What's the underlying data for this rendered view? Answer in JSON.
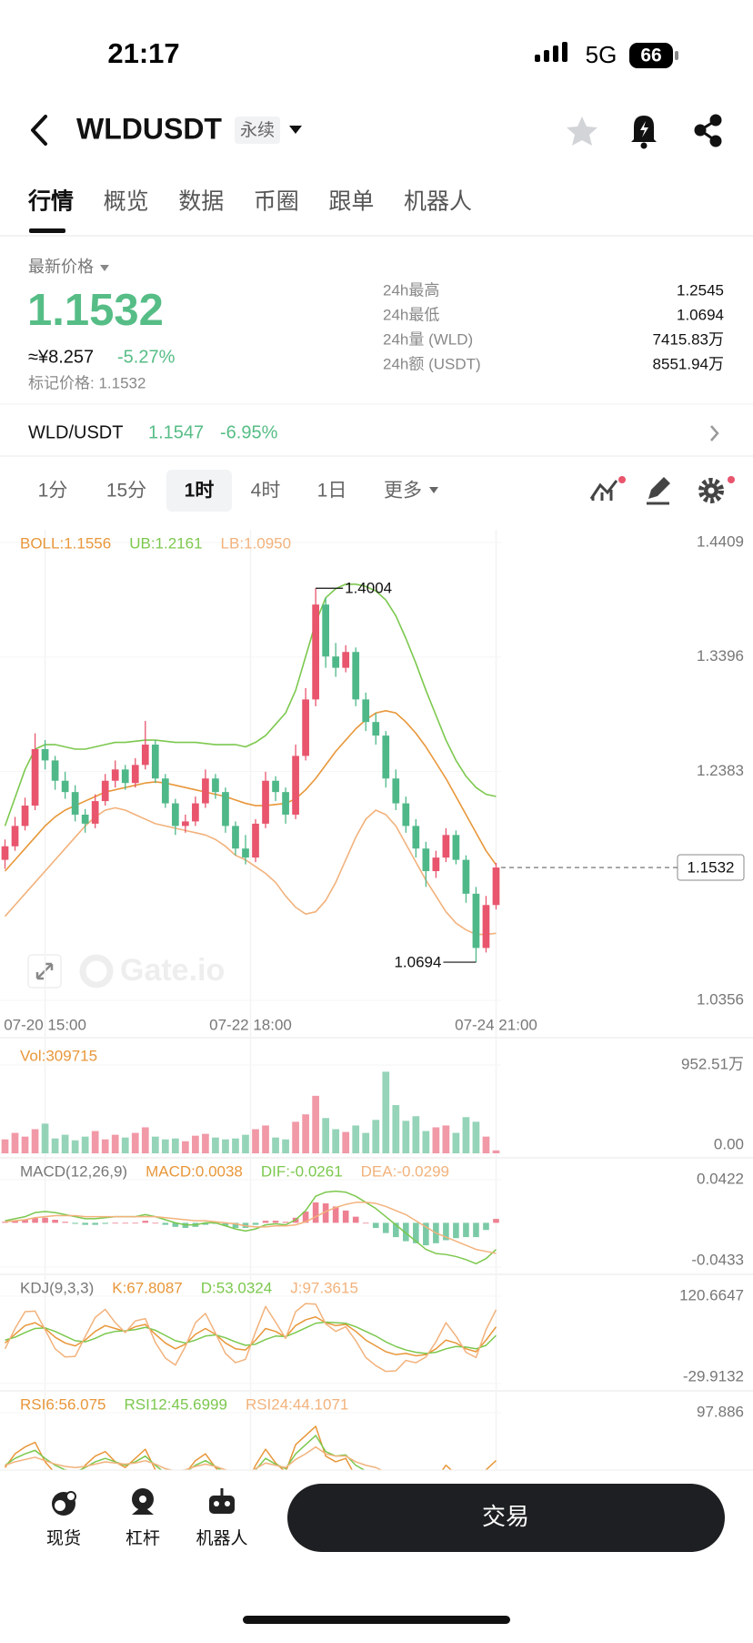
{
  "status_bar": {
    "time": "21:17",
    "network": "5G",
    "battery": "66"
  },
  "header": {
    "symbol": "WLDUSDT",
    "tag": "永续"
  },
  "tabs": [
    "行情",
    "概览",
    "数据",
    "币圈",
    "跟单",
    "机器人"
  ],
  "price": {
    "label": "最新价格",
    "last": "1.1532",
    "cny": "≈¥8.257",
    "change": "-5.27%",
    "mark": "标记价格: 1.1532",
    "stats": [
      [
        "24h最高",
        "1.2545"
      ],
      [
        "24h最低",
        "1.0694"
      ],
      [
        "24h量 (WLD)",
        "7415.83万"
      ],
      [
        "24h额 (USDT)",
        "8551.94万"
      ]
    ]
  },
  "spot": {
    "pair": "WLD/USDT",
    "price": "1.1547",
    "change": "-6.95%"
  },
  "intervals": [
    "1分",
    "15分",
    "1时",
    "4时",
    "1日",
    "更多"
  ],
  "chart": {
    "type": "candlestick",
    "up_color": "#e8556d",
    "down_color": "#4fb889",
    "watermark": "Gate.io",
    "xlim": [
      -0.5,
      49.5
    ],
    "xticks": [
      {
        "value": 4,
        "label": "07-20 15:00"
      },
      {
        "value": 24.5,
        "label": "07-22 18:00"
      },
      {
        "value": 49,
        "label": "07-24 21:00"
      }
    ],
    "ylim": [
      1.0356,
      1.4409
    ],
    "yticks": [
      1.4409,
      1.3396,
      1.2383,
      1.0356
    ],
    "candles": [
      [
        1.16,
        1.178,
        1.152,
        1.172
      ],
      [
        1.172,
        1.198,
        1.168,
        1.19
      ],
      [
        1.19,
        1.215,
        1.186,
        1.208
      ],
      [
        1.208,
        1.272,
        1.204,
        1.258
      ],
      [
        1.258,
        1.266,
        1.24,
        1.248
      ],
      [
        1.248,
        1.252,
        1.222,
        1.23
      ],
      [
        1.23,
        1.238,
        1.214,
        1.22
      ],
      [
        1.22,
        1.226,
        1.194,
        1.2
      ],
      [
        1.2,
        1.205,
        1.184,
        1.192
      ],
      [
        1.192,
        1.218,
        1.188,
        1.212
      ],
      [
        1.212,
        1.236,
        1.208,
        1.23
      ],
      [
        1.23,
        1.248,
        1.224,
        1.24
      ],
      [
        1.24,
        1.244,
        1.222,
        1.228
      ],
      [
        1.228,
        1.25,
        1.224,
        1.244
      ],
      [
        1.244,
        1.283,
        1.24,
        1.262
      ],
      [
        1.262,
        1.266,
        1.228,
        1.232
      ],
      [
        1.232,
        1.236,
        1.206,
        1.21
      ],
      [
        1.21,
        1.214,
        1.182,
        1.19
      ],
      [
        1.19,
        1.2,
        1.184,
        1.194
      ],
      [
        1.194,
        1.216,
        1.19,
        1.21
      ],
      [
        1.21,
        1.24,
        1.206,
        1.232
      ],
      [
        1.232,
        1.236,
        1.214,
        1.22
      ],
      [
        1.22,
        1.224,
        1.184,
        1.19
      ],
      [
        1.19,
        1.194,
        1.164,
        1.17
      ],
      [
        1.17,
        1.182,
        1.156,
        1.162
      ],
      [
        1.162,
        1.196,
        1.158,
        1.192
      ],
      [
        1.192,
        1.238,
        1.188,
        1.23
      ],
      [
        1.23,
        1.234,
        1.212,
        1.22
      ],
      [
        1.22,
        1.224,
        1.192,
        1.2
      ],
      [
        1.2,
        1.262,
        1.196,
        1.252
      ],
      [
        1.252,
        1.312,
        1.248,
        1.302
      ],
      [
        1.302,
        1.4004,
        1.296,
        1.386
      ],
      [
        1.386,
        1.392,
        1.33,
        1.34
      ],
      [
        1.34,
        1.352,
        1.322,
        1.33
      ],
      [
        1.33,
        1.35,
        1.326,
        1.344
      ],
      [
        1.344,
        1.348,
        1.296,
        1.302
      ],
      [
        1.302,
        1.308,
        1.274,
        1.282
      ],
      [
        1.282,
        1.29,
        1.262,
        1.27
      ],
      [
        1.27,
        1.274,
        1.224,
        1.232
      ],
      [
        1.232,
        1.24,
        1.204,
        1.21
      ],
      [
        1.21,
        1.216,
        1.184,
        1.19
      ],
      [
        1.19,
        1.196,
        1.162,
        1.17
      ],
      [
        1.17,
        1.176,
        1.136,
        1.15
      ],
      [
        1.15,
        1.168,
        1.144,
        1.162
      ],
      [
        1.162,
        1.188,
        1.158,
        1.182
      ],
      [
        1.182,
        1.186,
        1.156,
        1.16
      ],
      [
        1.16,
        1.164,
        1.122,
        1.13
      ],
      [
        1.13,
        1.136,
        1.0694,
        1.082
      ],
      [
        1.082,
        1.128,
        1.078,
        1.12
      ],
      [
        1.12,
        1.1572,
        1.116,
        1.1532
      ]
    ],
    "series": [
      {
        "name": "BOLL:1.1556",
        "color": "#e8973a",
        "values": [
          1.15,
          1.16,
          1.17,
          1.18,
          1.19,
          1.198,
          1.204,
          1.208,
          1.212,
          1.216,
          1.22,
          1.222,
          1.224,
          1.226,
          1.228,
          1.229,
          1.228,
          1.226,
          1.224,
          1.222,
          1.22,
          1.218,
          1.216,
          1.213,
          1.21,
          1.208,
          1.208,
          1.209,
          1.21,
          1.214,
          1.222,
          1.232,
          1.244,
          1.256,
          1.266,
          1.276,
          1.284,
          1.29,
          1.292,
          1.29,
          1.282,
          1.272,
          1.26,
          1.246,
          1.232,
          1.216,
          1.2,
          1.184,
          1.168,
          1.1556
        ]
      },
      {
        "name": "UB:1.2161",
        "color": "#7cc84e",
        "values": [
          1.19,
          1.215,
          1.24,
          1.258,
          1.262,
          1.262,
          1.26,
          1.258,
          1.258,
          1.26,
          1.262,
          1.264,
          1.264,
          1.265,
          1.266,
          1.266,
          1.265,
          1.264,
          1.264,
          1.264,
          1.263,
          1.262,
          1.262,
          1.262,
          1.26,
          1.264,
          1.27,
          1.28,
          1.29,
          1.31,
          1.34,
          1.37,
          1.392,
          1.4,
          1.404,
          1.404,
          1.402,
          1.398,
          1.39,
          1.376,
          1.356,
          1.334,
          1.31,
          1.288,
          1.266,
          1.248,
          1.234,
          1.224,
          1.218,
          1.2161
        ]
      },
      {
        "name": "LB:1.0950",
        "color": "#f2b27c",
        "values": [
          1.11,
          1.12,
          1.13,
          1.14,
          1.15,
          1.16,
          1.17,
          1.18,
          1.19,
          1.198,
          1.204,
          1.206,
          1.204,
          1.2,
          1.196,
          1.192,
          1.19,
          1.188,
          1.186,
          1.184,
          1.182,
          1.178,
          1.172,
          1.164,
          1.16,
          1.154,
          1.148,
          1.14,
          1.128,
          1.118,
          1.112,
          1.114,
          1.124,
          1.14,
          1.16,
          1.18,
          1.196,
          1.204,
          1.2,
          1.19,
          1.174,
          1.158,
          1.142,
          1.128,
          1.114,
          1.104,
          1.098,
          1.094,
          1.094,
          1.095
        ]
      }
    ],
    "volume": {
      "name": "Vol:309715",
      "color": "#e8973a",
      "ylim": [
        0,
        9525100
      ],
      "yticks": [
        {
          "value": 9525100,
          "label": "952.51万"
        },
        {
          "value": 0,
          "label": "0.00"
        }
      ],
      "values": [
        1500000,
        2200000,
        1800000,
        2600000,
        3200000,
        1600000,
        2000000,
        1400000,
        1800000,
        2400000,
        1500000,
        2000000,
        1700000,
        2200000,
        2800000,
        1800000,
        1500000,
        1600000,
        1300000,
        1900000,
        2100000,
        1700000,
        1500000,
        1600000,
        2000000,
        2600000,
        3000000,
        1700000,
        1500000,
        3400000,
        4200000,
        6200000,
        3800000,
        2600000,
        2300000,
        3000000,
        2200000,
        3600000,
        8800000,
        5200000,
        3500000,
        4000000,
        2400000,
        2800000,
        3000000,
        2200000,
        3900000,
        3400000,
        1800000,
        309715
      ]
    },
    "macd": {
      "title": "MACD(12,26,9)",
      "ylim": [
        -0.0433,
        0.0422
      ],
      "yticks": [
        0.0422,
        -0.0433
      ],
      "histogram": {
        "name": "MACD:0.0038",
        "color": "#e8973a",
        "values": [
          0.001,
          0.002,
          0.003,
          0.005,
          0.005,
          0.003,
          0.001,
          -0.001,
          -0.002,
          -0.002,
          -0.001,
          0,
          0,
          0,
          0.002,
          0,
          -0.002,
          -0.004,
          -0.005,
          -0.004,
          -0.002,
          -0.001,
          -0.003,
          -0.005,
          -0.005,
          -0.002,
          0.002,
          0.002,
          0.001,
          0.005,
          0.011,
          0.02,
          0.019,
          0.016,
          0.012,
          0.006,
          0,
          -0.005,
          -0.01,
          -0.014,
          -0.018,
          -0.02,
          -0.022,
          -0.02,
          -0.017,
          -0.015,
          -0.014,
          -0.014,
          -0.007,
          0.0038
        ]
      },
      "series": [
        {
          "name": "DIF:-0.0261",
          "color": "#7cc84e",
          "values": [
            0.002,
            0.004,
            0.006,
            0.01,
            0.011,
            0.01,
            0.008,
            0.006,
            0.004,
            0.004,
            0.005,
            0.006,
            0.006,
            0.006,
            0.008,
            0.006,
            0.003,
            0.0,
            -0.002,
            -0.002,
            0.0,
            0.0,
            -0.003,
            -0.006,
            -0.008,
            -0.006,
            -0.002,
            -0.001,
            -0.002,
            0.003,
            0.012,
            0.026,
            0.03,
            0.031,
            0.03,
            0.026,
            0.02,
            0.014,
            0.006,
            -0.002,
            -0.01,
            -0.018,
            -0.026,
            -0.03,
            -0.031,
            -0.033,
            -0.036,
            -0.04,
            -0.035,
            -0.0261
          ]
        },
        {
          "name": "DEA:-0.0299",
          "color": "#f2b27c",
          "values": [
            0.001,
            0.002,
            0.003,
            0.005,
            0.006,
            0.007,
            0.007,
            0.007,
            0.006,
            0.006,
            0.006,
            0.006,
            0.006,
            0.006,
            0.006,
            0.006,
            0.005,
            0.004,
            0.003,
            0.002,
            0.002,
            0.001,
            0.0,
            -0.001,
            -0.003,
            -0.004,
            -0.004,
            -0.003,
            -0.003,
            -0.002,
            0.001,
            0.006,
            0.011,
            0.015,
            0.018,
            0.02,
            0.02,
            0.019,
            0.016,
            0.012,
            0.008,
            0.002,
            -0.004,
            -0.01,
            -0.014,
            -0.018,
            -0.022,
            -0.026,
            -0.028,
            -0.0299
          ]
        }
      ]
    },
    "kdj": {
      "title": "KDJ(9,3,3)",
      "ylim": [
        -29.9132,
        120.6647
      ],
      "yticks": [
        120.6647,
        -29.9132
      ],
      "series": [
        {
          "name": "K:67.8087",
          "color": "#e8973a",
          "values": [
            40,
            55,
            70,
            75,
            65,
            50,
            40,
            35,
            45,
            60,
            70,
            65,
            60,
            68,
            72,
            55,
            40,
            30,
            38,
            55,
            65,
            55,
            40,
            30,
            28,
            45,
            65,
            60,
            50,
            70,
            80,
            85,
            75,
            70,
            72,
            60,
            45,
            35,
            25,
            20,
            22,
            18,
            20,
            30,
            45,
            40,
            30,
            25,
            45,
            67.8087
          ]
        },
        {
          "name": "D:53.0324",
          "color": "#7cc84e",
          "values": [
            45,
            50,
            58,
            65,
            66,
            60,
            52,
            44,
            42,
            48,
            56,
            60,
            61,
            63,
            67,
            62,
            53,
            44,
            40,
            45,
            52,
            54,
            49,
            42,
            36,
            38,
            46,
            52,
            51,
            58,
            66,
            74,
            76,
            75,
            74,
            68,
            60,
            52,
            42,
            34,
            28,
            24,
            22,
            24,
            30,
            34,
            33,
            30,
            36,
            53.0324
          ]
        },
        {
          "name": "J:97.3615",
          "color": "#f2b27c",
          "values": [
            30,
            65,
            94,
            95,
            63,
            30,
            16,
            17,
            51,
            84,
            98,
            75,
            58,
            78,
            82,
            41,
            14,
            2,
            34,
            75,
            91,
            57,
            22,
            6,
            12,
            59,
            103,
            76,
            48,
            94,
            108,
            107,
            73,
            60,
            68,
            44,
            15,
            1,
            -9,
            -8,
            10,
            6,
            16,
            42,
            75,
            52,
            24,
            15,
            63,
            97.3615
          ]
        }
      ]
    },
    "rsi": {
      "ylim": [
        20,
        97.886
      ],
      "yticks": [
        97.886
      ],
      "series": [
        {
          "name": "RSI6:56.075",
          "color": "#e8973a",
          "values": [
            50,
            62,
            68,
            72,
            55,
            45,
            42,
            40,
            52,
            60,
            64,
            55,
            50,
            58,
            66,
            48,
            38,
            35,
            45,
            56,
            62,
            50,
            40,
            34,
            33,
            52,
            66,
            54,
            46,
            70,
            78,
            86,
            60,
            55,
            58,
            42,
            38,
            36,
            30,
            32,
            34,
            30,
            28,
            40,
            52,
            44,
            34,
            26,
            48,
            56.075
          ]
        },
        {
          "name": "RSI12:45.6999",
          "color": "#7cc84e",
          "values": [
            52,
            58,
            62,
            65,
            58,
            52,
            48,
            46,
            50,
            55,
            58,
            55,
            52,
            55,
            60,
            52,
            45,
            42,
            46,
            52,
            56,
            51,
            45,
            40,
            39,
            48,
            58,
            53,
            49,
            62,
            70,
            78,
            64,
            60,
            61,
            52,
            47,
            44,
            39,
            38,
            38,
            36,
            34,
            40,
            47,
            44,
            38,
            33,
            42,
            45.6999
          ]
        },
        {
          "name": "RSI24:44.1071",
          "color": "#f2b27c",
          "values": [
            52,
            55,
            57,
            59,
            56,
            53,
            51,
            50,
            51,
            53,
            55,
            54,
            53,
            54,
            56,
            53,
            49,
            47,
            48,
            51,
            53,
            51,
            48,
            46,
            45,
            49,
            54,
            52,
            50,
            57,
            62,
            68,
            62,
            60,
            60,
            55,
            52,
            50,
            46,
            45,
            44,
            43,
            42,
            44,
            47,
            45,
            42,
            39,
            42,
            44.1071
          ]
        }
      ]
    }
  },
  "bottom_nav": {
    "items": [
      "现货",
      "杠杆",
      "机器人"
    ],
    "trade": "交易"
  }
}
